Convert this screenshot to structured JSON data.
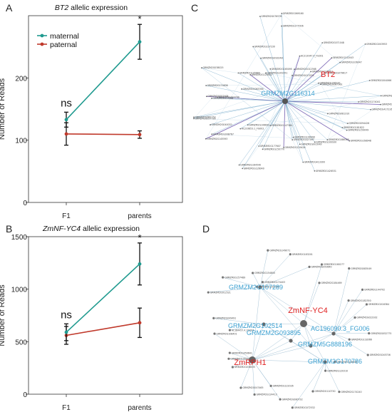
{
  "chart_data": [
    {
      "panel": "A",
      "type": "line",
      "title_gene": "BT2",
      "title_rest": " allelic expression",
      "ylabel": "Number of Reads",
      "categories": [
        "F1",
        "parents"
      ],
      "yticks": [
        0,
        100,
        200
      ],
      "ylim": [
        0,
        300
      ],
      "series": [
        {
          "name": "maternal",
          "color": "#1f9a8f",
          "values": [
            133,
            258
          ],
          "err": [
            12,
            28
          ]
        },
        {
          "name": "paternal",
          "color": "#c0392b",
          "values": [
            110,
            109
          ],
          "err": [
            18,
            6
          ]
        }
      ],
      "annotations": [
        {
          "text": "ns",
          "cat": 0
        },
        {
          "text": "*",
          "cat": 1
        }
      ],
      "legend": "top-left"
    },
    {
      "panel": "B",
      "type": "line",
      "title_gene": "ZmNF-YC4",
      "title_rest": " allelic expression",
      "ylabel": "Number of Reads",
      "categories": [
        "F1",
        "parents"
      ],
      "yticks": [
        0,
        500,
        1000,
        1500
      ],
      "ylim": [
        0,
        1500
      ],
      "series": [
        {
          "name": "maternal",
          "color": "#1f9a8f",
          "values": [
            590,
            1240
          ],
          "err": [
            80,
            200
          ]
        },
        {
          "name": "paternal",
          "color": "#c0392b",
          "values": [
            560,
            680
          ],
          "err": [
            85,
            140
          ]
        }
      ],
      "annotations": [
        {
          "text": "ns",
          "cat": 0
        },
        {
          "text": "*",
          "cat": 1
        }
      ]
    }
  ],
  "network_c": {
    "panel": "C",
    "hub_labels": [
      "BT2",
      "GRMZM2G116314"
    ],
    "node_labels": [
      "GRMZM2G040997",
      "GRMZM2G417226",
      "GRMZM2G081310",
      "GRMZM2G094426",
      "GRMZM2G100930",
      "GRMZM2G086365",
      "GRMZM2G159049",
      "GRMZM2G168948",
      "GRMZM2G181822",
      "GRMZM2G413300",
      "GRMZM2G426531",
      "GRMZM2G001049",
      "GRMZM2G027097",
      "GRMZM2G106490",
      "GRMZM2G129426",
      "GRMZM2G147384",
      "GRMZM2G150770",
      "GRMZM2G164540",
      "GRMZM2G126040",
      "GRMZM2G177607",
      "GRMZM2G106642",
      "GRMZM2G145593",
      "GRMZM2G040070",
      "AC233853.1_FG002",
      "GRMZM2G008767",
      "GRMZM2G082153",
      "GRMZM2G057726",
      "GRMZM2G123562",
      "GRMZM2G057406",
      "GRMZM2G033740",
      "GRMZM2G174836",
      "GRMZM2G063394",
      "GRMZM2G107230",
      "GRMZM2G038025",
      "GRMZM2G093248",
      "GRMZM2G129402",
      "GRMZM2G105660",
      "GRMZM2G076578",
      "GRMZM2G165095",
      "GRMZM2G161951",
      "GRMZM2G069160",
      "GRMZM2G177006",
      "AC213047.4_FG001",
      "GRMZM2G012368",
      "GRMZM2G013255",
      "GRMZM2G106047",
      "GRMZM2G071048",
      "GRMZM2G087961",
      "GRMZM2G003953",
      "GRMZM2G102043",
      "GRMZM2G015753",
      "GRMZM2G079617",
      "GRMZM2G146247",
      "GRMZM2G004066",
      "GRMZM2G061310",
      "GRMZM2G174041"
    ]
  },
  "network_d": {
    "panel": "D",
    "hub_red_labels": [
      "ZmNF-YC4",
      "ZmRPH1"
    ],
    "hub_blue_labels": [
      "GRMZM2G107289",
      "GRMZM2G102514",
      "AC196090.3_FG006",
      "GRMZM2G093895",
      "GRMZM5G888196",
      "GRMZM2G170786"
    ],
    "node_labels": [
      "GRMZM2G052775",
      "GRMZM2G118366",
      "GRMZM2G045706",
      "GRMZM2G138580",
      "GRMZM2G174240",
      "GRMZM2G120310",
      "GRMZM2G110750",
      "GRMZM2G072532",
      "GRMZM2G080732",
      "GRMZM2G122026",
      "GRMZM2G124413",
      "GRMZM2G047465",
      "GRMZM2G038035",
      "GRMZM2G165500",
      "GRMZM2G059641",
      "AC184457.4_FG003",
      "GRMZM2G108401",
      "GRMZM2G049491",
      "GRMZM2G012521",
      "GRMZM2G157489",
      "GRMZM2G100336",
      "GRMZM2G154800",
      "GRMZM2G174403",
      "GRMZM2G149071",
      "GRMZM2G183201",
      "GRMZM2G059640",
      "GRMZM2G160277",
      "GRMZM2G184469",
      "GRMZM2G083049",
      "GRMZM2G182350",
      "GRMZM2G144702",
      "GRMZM2G016384",
      "GRMZM2G022932"
    ]
  }
}
